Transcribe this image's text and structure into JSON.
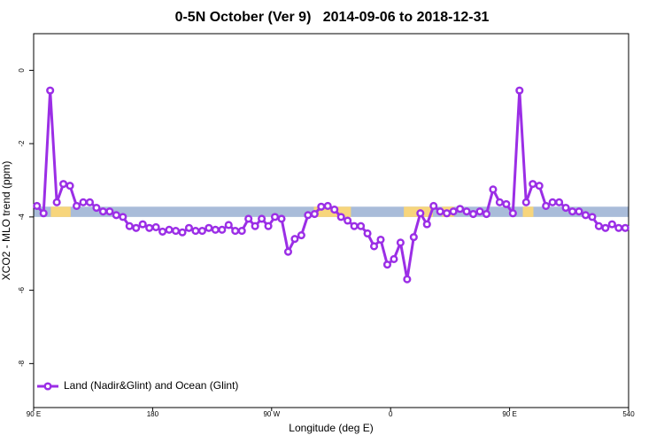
{
  "chart_data": {
    "type": "line",
    "title": "0-5N October (Ver 9)   2014-09-06 to 2018-12-31",
    "x_label": "Longitude (deg E)",
    "y_label": "XCO2 - MLO trend (ppm)",
    "xlim": [
      90,
      540
    ],
    "xticks": [
      {
        "value": 90,
        "label": "90 E"
      },
      180,
      {
        "value": 270,
        "label": "90 W"
      },
      {
        "value": 360,
        "label": "0"
      },
      {
        "value": 450,
        "label": "90 E"
      },
      540
    ],
    "ylim": [
      -9.2,
      1.0
    ],
    "yticks": [
      0,
      -2,
      -4,
      -6,
      -8
    ],
    "legend": "bottomleft",
    "band": {
      "ylim": [
        -4.0,
        -3.72
      ],
      "color": "#a9bcd9",
      "highlight_color": "#f7d57c",
      "highlights": [
        [
          103,
          118
        ],
        [
          302,
          330
        ],
        [
          370,
          392
        ],
        [
          399,
          408
        ],
        [
          460,
          468
        ]
      ]
    },
    "x": [
      92.5,
      97.5,
      102.5,
      107.5,
      112.5,
      117.5,
      122.5,
      127.5,
      132.5,
      137.5,
      142.5,
      147.5,
      152.5,
      157.5,
      162.5,
      167.5,
      172.5,
      177.5,
      182.5,
      187.5,
      192.5,
      197.5,
      202.5,
      207.5,
      212.5,
      217.5,
      222.5,
      227.5,
      232.5,
      237.5,
      242.5,
      247.5,
      252.5,
      257.5,
      262.5,
      267.5,
      272.5,
      277.5,
      282.5,
      287.5,
      292.5,
      297.5,
      302.5,
      307.5,
      312.5,
      317.5,
      322.5,
      327.5,
      332.5,
      337.5,
      342.5,
      347.5,
      352.5,
      357.5,
      362.5,
      367.5,
      372.5,
      377.5,
      382.5,
      387.5,
      392.5,
      397.5,
      402.5,
      407.5,
      412.5,
      417.5,
      422.5,
      427.5,
      432.5,
      437.5,
      442.5,
      447.5,
      452.5,
      457.5,
      462.5,
      467.5,
      472.5,
      477.5,
      482.5,
      487.5,
      492.5,
      497.5,
      502.5,
      507.5,
      512.5,
      517.5,
      522.5,
      527.5,
      532.5,
      537.5
    ],
    "series": [
      {
        "name": "Land (Nadir&Glint) and Ocean (Glint)",
        "color": "#9b2ee6",
        "values": [
          -3.7,
          -3.9,
          -0.55,
          -3.6,
          -3.1,
          -3.15,
          -3.7,
          -3.6,
          -3.6,
          -3.75,
          -3.85,
          -3.85,
          -3.95,
          -4.0,
          -4.25,
          -4.3,
          -4.2,
          -4.3,
          -4.28,
          -4.4,
          -4.35,
          -4.38,
          -4.42,
          -4.3,
          -4.38,
          -4.38,
          -4.3,
          -4.35,
          -4.35,
          -4.22,
          -4.38,
          -4.38,
          -4.05,
          -4.25,
          -4.05,
          -4.25,
          -4.0,
          -4.05,
          -4.95,
          -4.6,
          -4.5,
          -3.95,
          -3.92,
          -3.72,
          -3.7,
          -3.8,
          -4.0,
          -4.1,
          -4.25,
          -4.25,
          -4.45,
          -4.8,
          -4.62,
          -5.3,
          -5.15,
          -4.7,
          -5.7,
          -4.55,
          -3.9,
          -4.2,
          -3.7,
          -3.85,
          -3.9,
          -3.85,
          -3.78,
          -3.85,
          -3.92,
          -3.85,
          -3.92,
          -3.25,
          -3.6,
          -3.65,
          -3.9,
          -0.55,
          -3.6,
          -3.1,
          -3.15,
          -3.7,
          -3.6,
          -3.6,
          -3.75,
          -3.85,
          -3.85,
          -3.95,
          -4.0,
          -4.25,
          -4.3,
          -4.2,
          -4.3,
          -4.3
        ]
      }
    ]
  }
}
